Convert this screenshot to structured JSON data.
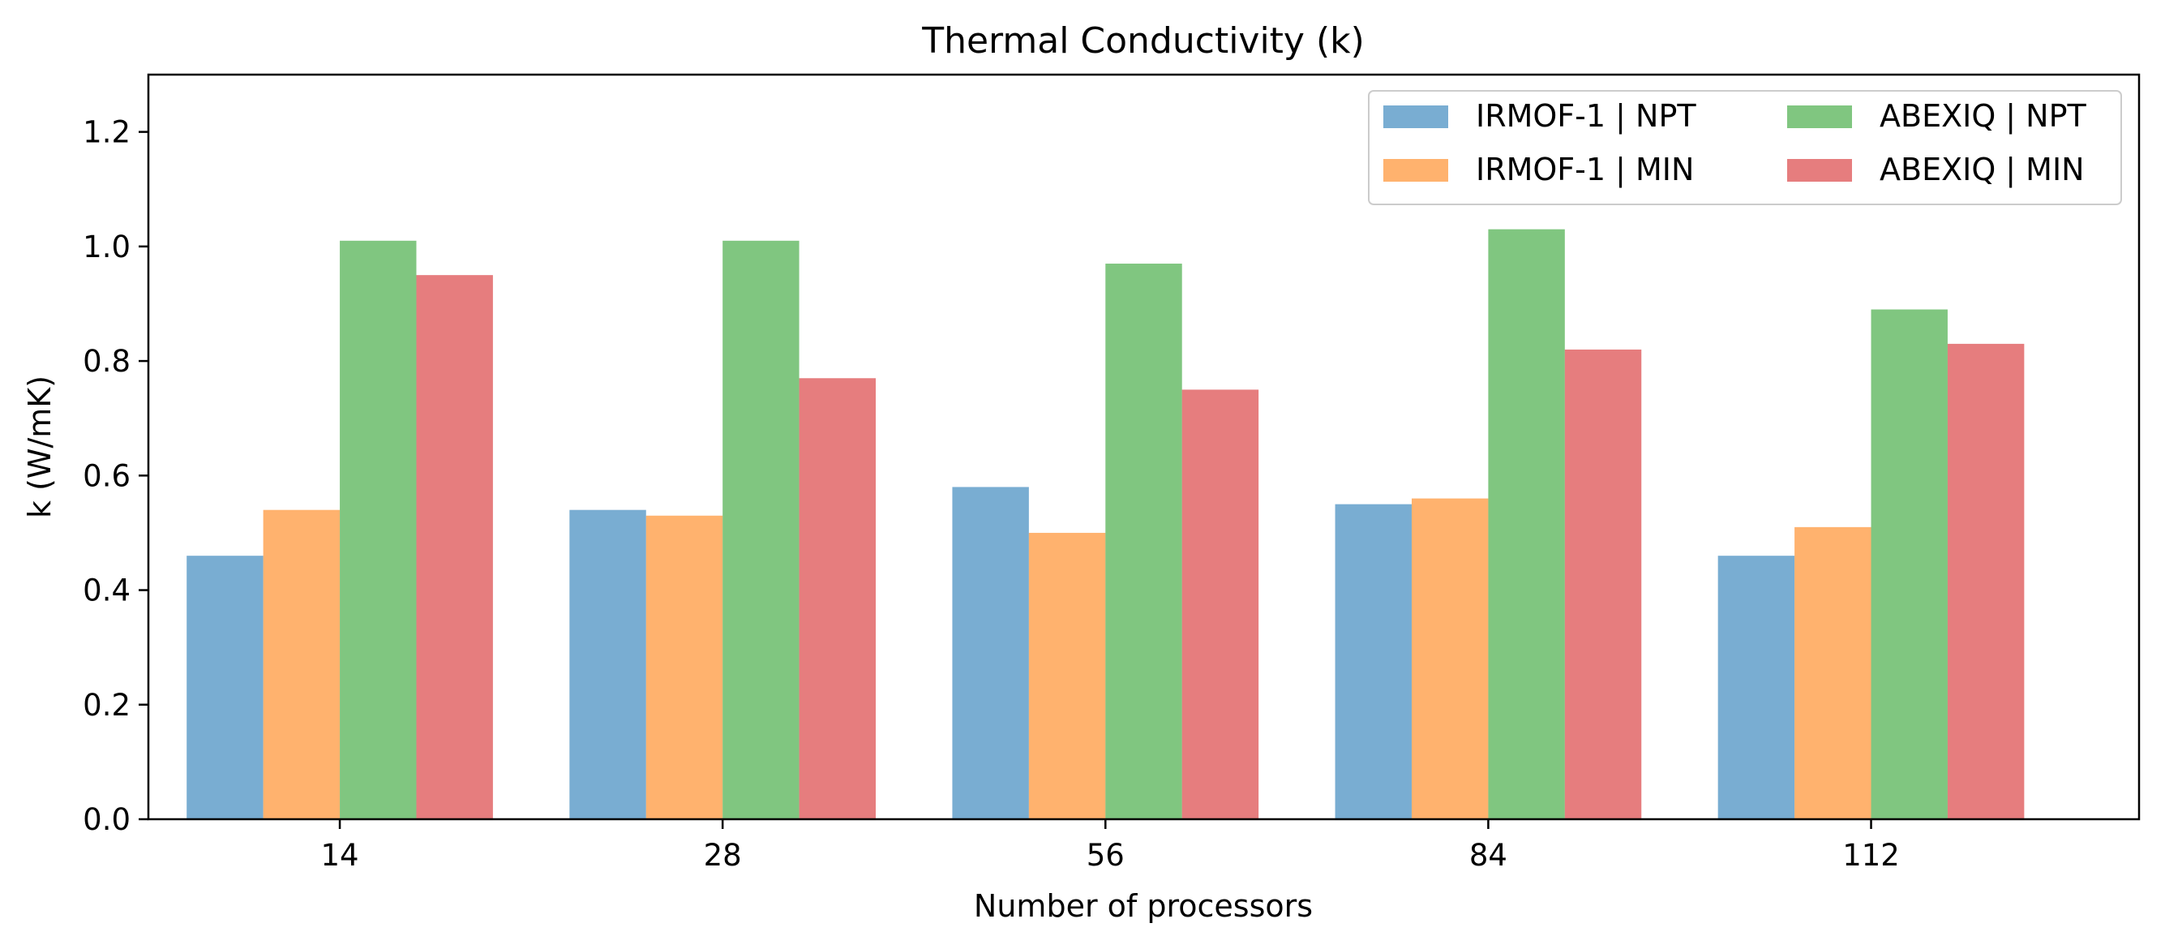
{
  "chart_data": {
    "type": "bar",
    "title": "Thermal Conductivity (k)",
    "xlabel": "Number of processors",
    "ylabel": "k (W/mK)",
    "ylim": [
      0,
      1.3
    ],
    "yticks": [
      0.0,
      0.2,
      0.4,
      0.6,
      0.8,
      1.0,
      1.2
    ],
    "ytick_labels": [
      "0.0",
      "0.2",
      "0.4",
      "0.6",
      "0.8",
      "1.0",
      "1.2"
    ],
    "categories": [
      "14",
      "28",
      "56",
      "84",
      "112"
    ],
    "grid": false,
    "legend_position": "top-right",
    "series": [
      {
        "name": "IRMOF-1 | NPT",
        "color": "#1f77b4",
        "values": [
          0.46,
          0.54,
          0.58,
          0.55,
          0.46
        ]
      },
      {
        "name": "IRMOF-1 | MIN",
        "color": "#ff7f0e",
        "values": [
          0.54,
          0.53,
          0.5,
          0.56,
          0.51
        ]
      },
      {
        "name": "ABEXIQ | NPT",
        "color": "#2ca02c",
        "values": [
          1.01,
          1.01,
          0.97,
          1.03,
          0.89
        ]
      },
      {
        "name": "ABEXIQ | MIN",
        "color": "#d62728",
        "values": [
          0.95,
          0.77,
          0.75,
          0.82,
          0.83
        ]
      }
    ]
  }
}
